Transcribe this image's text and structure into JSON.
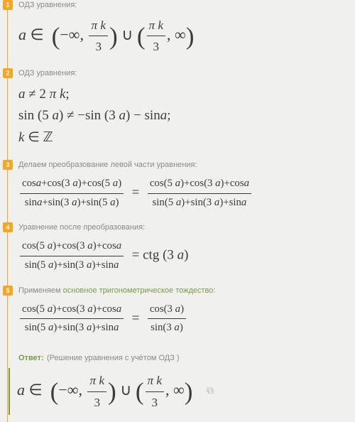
{
  "colors": {
    "accent_orange": "#f5a623",
    "accent_green": "#7a9a4a",
    "text_muted": "#8a8a88",
    "text_math": "#3b3b3b",
    "background": "#f0f0ee"
  },
  "steps": [
    {
      "num": "1",
      "title": "ОДЗ уравнения:",
      "math_lines": [
        "a ∈  (−∞, πk⁄3) ∪ (πk⁄3, ∞)"
      ]
    },
    {
      "num": "2",
      "title": "ОДЗ уравнения:",
      "math_lines": [
        "a ≠ 2 π k;",
        "sin (5 a) ≠ −sin (3 a) − sina;",
        "k ∈ ℤ"
      ]
    },
    {
      "num": "3",
      "title": "Делаем преобразование левой части уравнения:",
      "math_lines": [
        "(cosa+cos(3a)+cos(5a)) / (sina+sin(3a)+sin(5a)) = (cos(5a)+cos(3a)+cosa) / (sin(5a)+sin(3a)+sina)"
      ]
    },
    {
      "num": "4",
      "title": "Уравнение после преобразования:",
      "math_lines": [
        "(cos(5a)+cos(3a)+cosa) / (sin(5a)+sin(3a)+sina) = ctg (3 a)"
      ]
    },
    {
      "num": "5",
      "title_prefix": "Применяем ",
      "title_link": "основное тригонометрическое тождество",
      "title_suffix": ":",
      "math_lines": [
        "(cos(5a)+cos(3a)+cosa) / (sin(5a)+sin(3a)+sina) = cos(3a) / sin(3a)"
      ]
    }
  ],
  "answer": {
    "label": "Ответ:",
    "sub": "(Решение уравнения с учётом ОДЗ )",
    "math": "a ∈  (−∞, πk⁄3) ∪ (πk⁄3, ∞)"
  }
}
